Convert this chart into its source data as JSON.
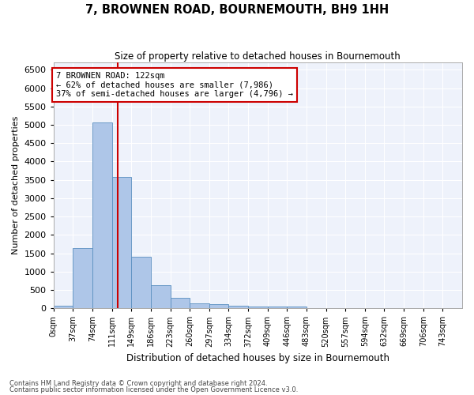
{
  "title": "7, BROWNEN ROAD, BOURNEMOUTH, BH9 1HH",
  "subtitle": "Size of property relative to detached houses in Bournemouth",
  "xlabel": "Distribution of detached houses by size in Bournemouth",
  "ylabel": "Number of detached properties",
  "footer_line1": "Contains HM Land Registry data © Crown copyright and database right 2024.",
  "footer_line2": "Contains public sector information licensed under the Open Government Licence v3.0.",
  "bar_labels": [
    "0sqm",
    "37sqm",
    "74sqm",
    "111sqm",
    "149sqm",
    "186sqm",
    "223sqm",
    "260sqm",
    "297sqm",
    "334sqm",
    "372sqm",
    "409sqm",
    "446sqm",
    "483sqm",
    "520sqm",
    "557sqm",
    "594sqm",
    "632sqm",
    "669sqm",
    "706sqm",
    "743sqm"
  ],
  "bar_values": [
    70,
    1630,
    5060,
    3580,
    1410,
    620,
    290,
    140,
    100,
    75,
    55,
    55,
    50,
    0,
    0,
    0,
    0,
    0,
    0,
    0,
    0
  ],
  "bar_color": "#aec6e8",
  "bar_edge_color": "#5a8fc0",
  "background_color": "#eef2fb",
  "grid_color": "#ffffff",
  "vline_color": "#cc0000",
  "ylim": [
    0,
    6700
  ],
  "yticks": [
    0,
    500,
    1000,
    1500,
    2000,
    2500,
    3000,
    3500,
    4000,
    4500,
    5000,
    5500,
    6000,
    6500
  ],
  "annotation_line1": "7 BROWNEN ROAD: 122sqm",
  "annotation_line2": "← 62% of detached houses are smaller (7,986)",
  "annotation_line3": "37% of semi-detached houses are larger (4,796) →",
  "annotation_box_color": "#cc0000",
  "property_sqm": 122,
  "bin_width": 37,
  "n_bins": 21
}
